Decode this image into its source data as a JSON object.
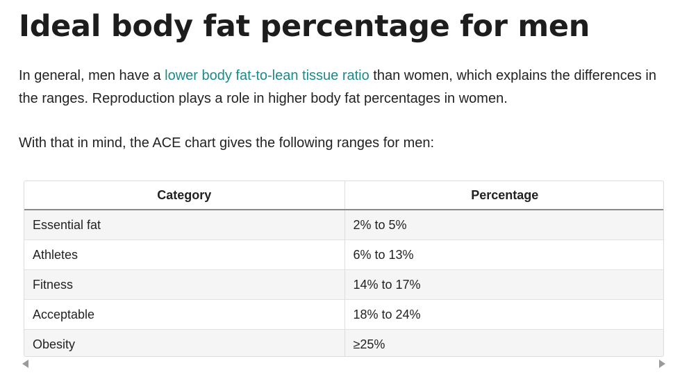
{
  "article": {
    "heading": "Ideal body fat percentage for men",
    "paragraph1": {
      "before_link": "In general, men have a ",
      "link_text": "lower body fat-to-lean tissue ratio",
      "after_link": " than women, which explains the differences in the ranges. Reproduction plays a role in higher body fat percentages in women."
    },
    "paragraph2": "With that in mind, the ACE chart gives the following ranges for men:"
  },
  "table": {
    "headers": [
      "Category",
      "Percentage"
    ],
    "rows": [
      [
        "Essential fat",
        "2% to 5%"
      ],
      [
        "Athletes",
        "6% to 13%"
      ],
      [
        "Fitness",
        "14% to 17%"
      ],
      [
        "Acceptable",
        "18% to 24%"
      ],
      [
        "Obesity",
        "≥25%"
      ]
    ]
  },
  "colors": {
    "link": "#1a8a8a",
    "text": "#222222",
    "row_alt": "#f5f5f5"
  },
  "icons": {
    "scroll_left": "caret-left-icon",
    "scroll_right": "caret-right-icon"
  }
}
